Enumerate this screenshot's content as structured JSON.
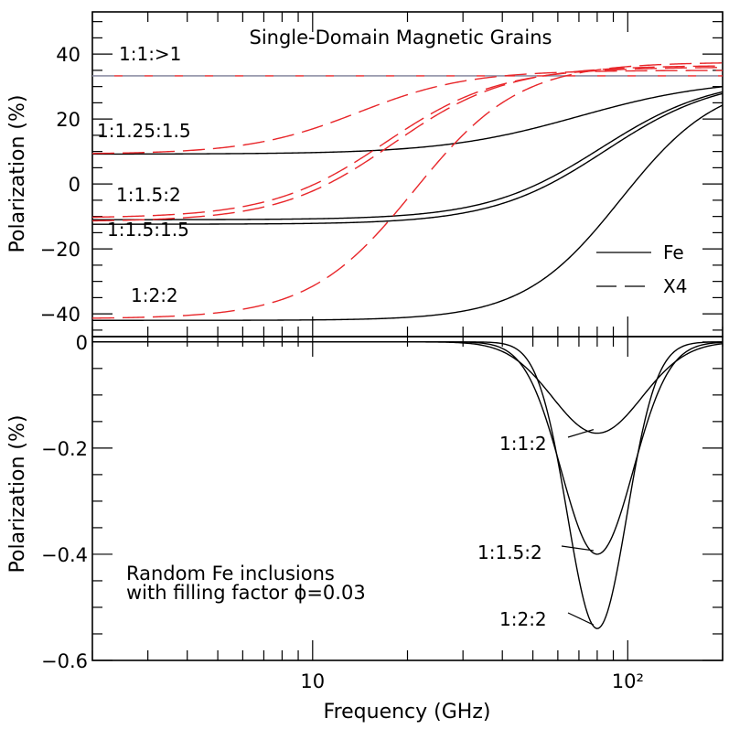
{
  "chart_data": [
    {
      "type": "line",
      "panel": "top",
      "title": "Single-Domain Magnetic Grains",
      "xlabel": "",
      "ylabel": "Polarization (%)",
      "xscale": "log",
      "xlim": [
        2,
        200
      ],
      "ylim": [
        -47,
        53
      ],
      "yticks": [
        40,
        20,
        0,
        -20,
        -40
      ],
      "ytick_labels": [
        "40",
        "20",
        "0",
        "−20",
        "−40"
      ],
      "legend": {
        "placement": "bottom-right",
        "entries": [
          {
            "label": "Fe",
            "style": "solid",
            "color": "#000000"
          },
          {
            "label": "X4",
            "style": "dashed",
            "color": "#000000"
          }
        ]
      },
      "series": [
        {
          "style": "solid",
          "color": "#e8262a",
          "shape": [
            33.3,
            33.3,
            33.3,
            33.3
          ]
        },
        {
          "style": "dashed",
          "color": "#7fa0b8",
          "shape": [
            33.3,
            33.3,
            33.3,
            33.3
          ]
        },
        {
          "style": "solid",
          "color": "#000000",
          "shape": [
            9.2,
            32.5,
            70,
            2.0
          ]
        },
        {
          "style": "solid",
          "color": "#000000",
          "shape": [
            -11.0,
            33.0,
            82,
            2.4
          ]
        },
        {
          "style": "solid",
          "color": "#000000",
          "shape": [
            -12.4,
            33.0,
            85,
            2.4
          ]
        },
        {
          "style": "solid",
          "color": "#000000",
          "shape": [
            -42.0,
            32.5,
            95,
            2.8
          ]
        },
        {
          "style": "dashed",
          "color": "#e8262a",
          "shape": [
            9.2,
            35.0,
            14,
            2.5
          ]
        },
        {
          "style": "dashed",
          "color": "#e8262a",
          "shape": [
            -10.5,
            36.0,
            17,
            2.4
          ]
        },
        {
          "style": "dashed",
          "color": "#e8262a",
          "shape": [
            -11.6,
            36.5,
            18,
            2.4
          ]
        },
        {
          "style": "dashed",
          "color": "#e8262a",
          "shape": [
            -41.5,
            37.5,
            21,
            2.6
          ]
        }
      ],
      "annotations": [
        "1:1:>1",
        "1:1.25:1.5",
        "1:1.5:2",
        "1:1.5:1.5",
        "1:2:2"
      ]
    },
    {
      "type": "line",
      "panel": "bottom",
      "xlabel": "Frequency (GHz)",
      "ylabel": "Polarization (%)",
      "xscale": "log",
      "xlim": [
        2,
        200
      ],
      "ylim": [
        -0.6,
        0.01
      ],
      "yticks": [
        0,
        -0.2,
        -0.4,
        -0.6
      ],
      "ytick_labels": [
        "0",
        "−0.2",
        "−0.4",
        "−0.6"
      ],
      "xticks": [
        10,
        100
      ],
      "xtick_labels": [
        "10",
        "10²"
      ],
      "series": [
        {
          "style": "solid",
          "color": "#000000",
          "shape": [
            -0.172,
            1.52
          ]
        },
        {
          "style": "solid",
          "color": "#000000",
          "shape": [
            -0.4,
            1.4
          ]
        },
        {
          "style": "solid",
          "color": "#000000",
          "shape": [
            -0.54,
            1.32
          ]
        }
      ],
      "annotations": [
        {
          "text": "1:1:2",
          "x": 80,
          "y": -0.172
        },
        {
          "text": "1:1.5:2",
          "x": 80,
          "y": -0.4
        },
        {
          "text": "1:2:2",
          "x": 80,
          "y": -0.54
        }
      ],
      "note_lines": [
        "Random Fe inclusions",
        "with filling factor ϕ=0.03"
      ]
    }
  ]
}
